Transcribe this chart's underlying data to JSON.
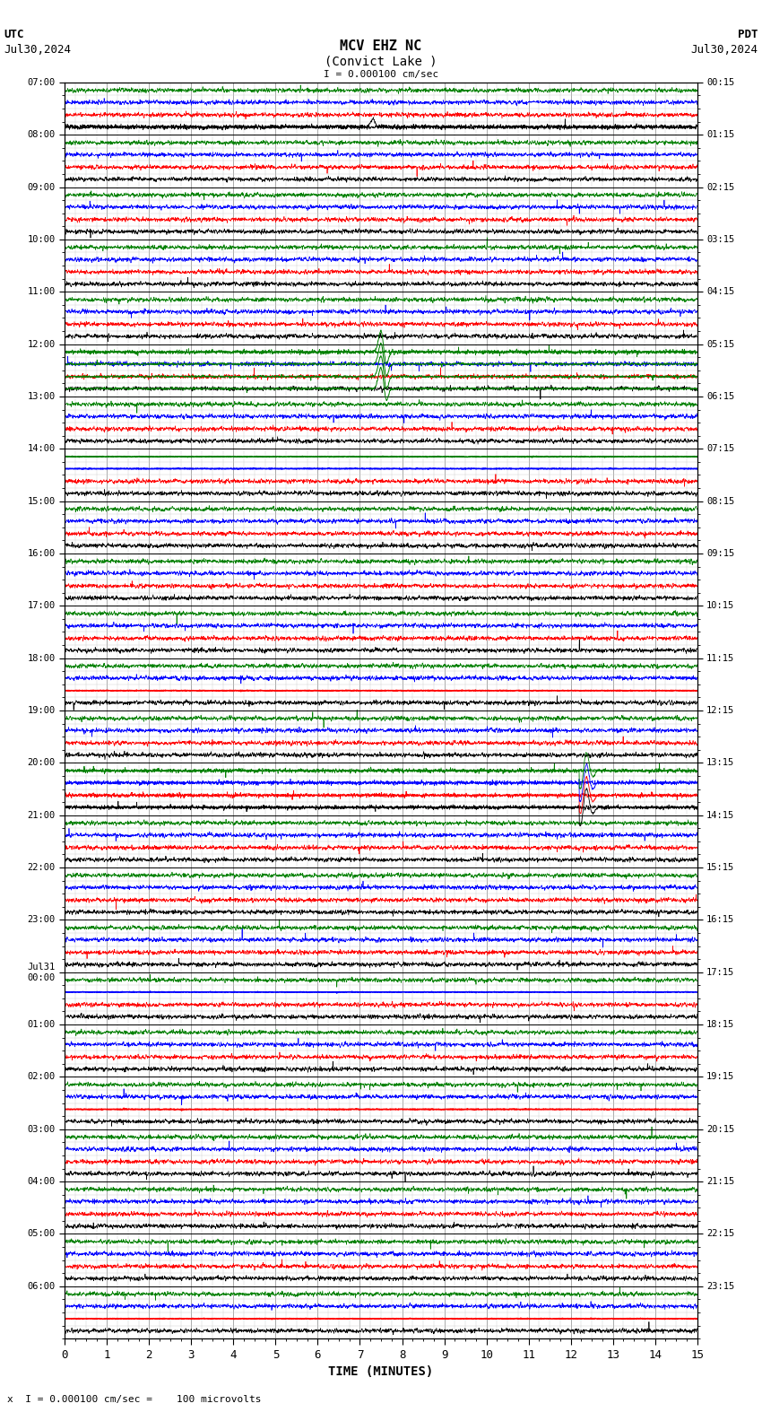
{
  "title_line1": "MCV EHZ NC",
  "title_line2": "(Convict Lake )",
  "scale_label": "I = 0.000100 cm/sec",
  "utc_label": "UTC",
  "pdt_label": "PDT",
  "date_left": "Jul30,2024",
  "date_right": "Jul30,2024",
  "bottom_label": "x  I = 0.000100 cm/sec =    100 microvolts",
  "xlabel": "TIME (MINUTES)",
  "left_times": [
    "07:00",
    "08:00",
    "09:00",
    "10:00",
    "11:00",
    "12:00",
    "13:00",
    "14:00",
    "15:00",
    "16:00",
    "17:00",
    "18:00",
    "19:00",
    "20:00",
    "21:00",
    "22:00",
    "23:00",
    "Jul31\n00:00",
    "01:00",
    "02:00",
    "03:00",
    "04:00",
    "05:00",
    "06:00"
  ],
  "right_times": [
    "00:15",
    "01:15",
    "02:15",
    "03:15",
    "04:15",
    "05:15",
    "06:15",
    "07:15",
    "08:15",
    "09:15",
    "10:15",
    "11:15",
    "12:15",
    "13:15",
    "14:15",
    "15:15",
    "16:15",
    "17:15",
    "18:15",
    "19:15",
    "20:15",
    "21:15",
    "22:15",
    "23:15"
  ],
  "n_rows": 24,
  "minutes_per_row": 15,
  "bg_color": "#ffffff",
  "grid_major_color": "#888888",
  "grid_minor_color": "#cccccc",
  "trace_colors": [
    "black",
    "red",
    "blue",
    "green"
  ],
  "noise_amp": 0.018,
  "flat_blue_rows": [
    7,
    17
  ],
  "flat_green_rows": [
    7
  ],
  "flat_red_rows": [
    11,
    19,
    23
  ],
  "green_spike_row": 5,
  "green_spike_minute": 7.5,
  "black_spike_row": 13,
  "black_spike_minute": 12.3,
  "figsize": [
    8.5,
    15.84
  ],
  "dpi": 100
}
